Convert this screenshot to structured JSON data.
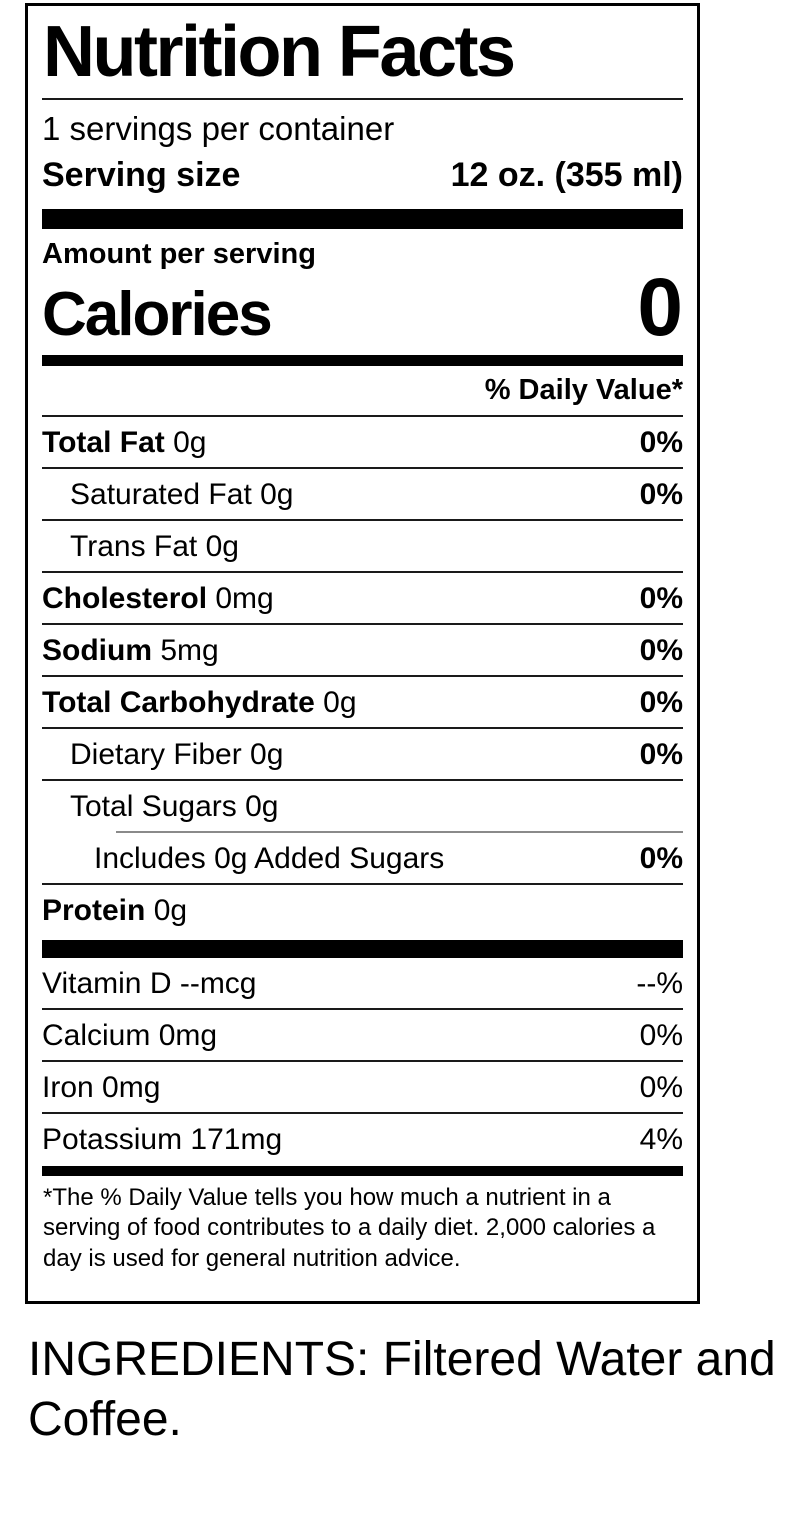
{
  "label": {
    "title": "Nutrition Facts",
    "servings_per_container": "1 servings per container",
    "serving_size_label": "Serving size",
    "serving_size_value": "12 oz. (355 ml)",
    "amount_per_serving": "Amount per serving",
    "calories_label": "Calories",
    "calories_value": "0",
    "daily_value_header": "% Daily Value*",
    "rows": [
      {
        "name": "Total Fat",
        "amount": "0g",
        "dv": "0%",
        "bold": true,
        "indent": 0,
        "rule_above": "none"
      },
      {
        "name": "Saturated Fat",
        "amount": "0g",
        "dv": "0%",
        "bold": false,
        "indent": 1,
        "rule_above": "full"
      },
      {
        "name": "Trans Fat",
        "amount": "0g",
        "dv": "",
        "bold": false,
        "indent": 1,
        "rule_above": "full"
      },
      {
        "name": "Cholesterol",
        "amount": "0mg",
        "dv": "0%",
        "bold": true,
        "indent": 0,
        "rule_above": "full"
      },
      {
        "name": "Sodium",
        "amount": "5mg",
        "dv": "0%",
        "bold": true,
        "indent": 0,
        "rule_above": "full"
      },
      {
        "name": "Total Carbohydrate",
        "amount": "0g",
        "dv": "0%",
        "bold": true,
        "indent": 0,
        "rule_above": "full"
      },
      {
        "name": "Dietary Fiber",
        "amount": "0g",
        "dv": "0%",
        "bold": false,
        "indent": 1,
        "rule_above": "full"
      },
      {
        "name": "Total Sugars",
        "amount": "0g",
        "dv": "",
        "bold": false,
        "indent": 1,
        "rule_above": "full"
      },
      {
        "name": "Includes 0g Added Sugars",
        "amount": "",
        "dv": "0%",
        "bold": false,
        "indent": 2,
        "rule_above": "sub"
      },
      {
        "name": "Protein",
        "amount": "0g",
        "dv": "",
        "bold": true,
        "indent": 0,
        "rule_above": "full"
      }
    ],
    "vitamins": [
      {
        "name": "Vitamin D",
        "amount": "--mcg",
        "dv": "--%",
        "rule_above": "none"
      },
      {
        "name": "Calcium",
        "amount": "0mg",
        "dv": "0%",
        "rule_above": "full"
      },
      {
        "name": "Iron",
        "amount": "0mg",
        "dv": "0%",
        "rule_above": "full"
      },
      {
        "name": "Potassium",
        "amount": "171mg",
        "dv": "4%",
        "rule_above": "full"
      }
    ],
    "footnote": "*The % Daily Value tells you how much a nutrient in a serving of food contributes to a daily diet. 2,000 calories a day is used for general nutrition advice.",
    "colors": {
      "text": "#000000",
      "background": "#ffffff",
      "border": "#000000"
    }
  },
  "ingredients": "INGREDIENTS: Filtered Water and Coffee."
}
